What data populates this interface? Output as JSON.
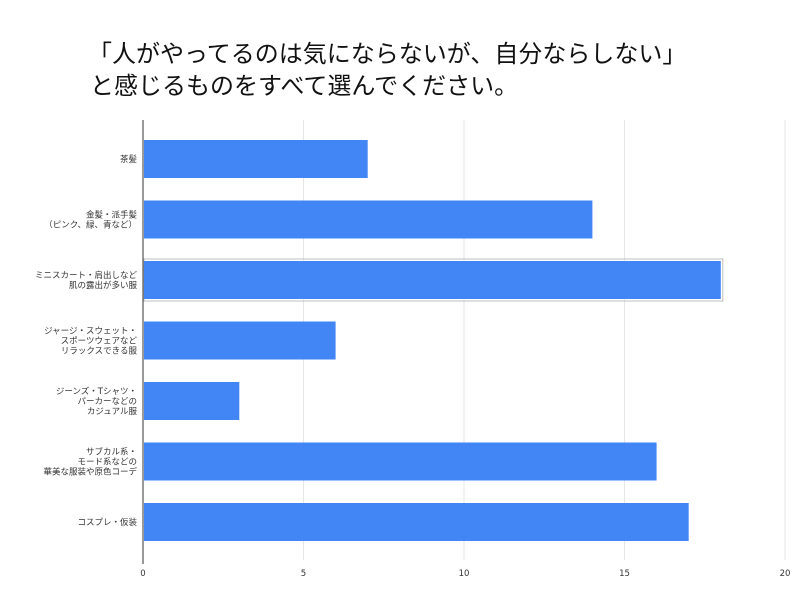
{
  "chart_data": {
    "type": "bar",
    "orientation": "horizontal",
    "title_lines": [
      "「人がやってるのは気にならないが、自分ならしない」",
      "と感じるものをすべて選んでください。"
    ],
    "categories": [
      [
        "茶髪"
      ],
      [
        "金髪・派手髪",
        "（ピンク、緑、青など）"
      ],
      [
        "ミニスカート・肩出しなど",
        "肌の露出が多い服"
      ],
      [
        "ジャージ・スウェット・",
        "スポーツウェアなど",
        "リラックスできる服"
      ],
      [
        "ジーンズ・Tシャツ・",
        "パーカーなどの",
        "カジュアル服"
      ],
      [
        "サブカル系・",
        "モード系などの",
        "華美な服装や原色コーデ"
      ],
      [
        "コスプレ・仮装"
      ]
    ],
    "values": [
      7,
      14,
      18,
      6,
      3,
      16,
      17
    ],
    "xlim": [
      0,
      20
    ],
    "xticks": [
      0,
      5,
      10,
      15,
      20
    ],
    "grid": true,
    "bar_color": "#4285f4",
    "highlighted_index": 2
  }
}
